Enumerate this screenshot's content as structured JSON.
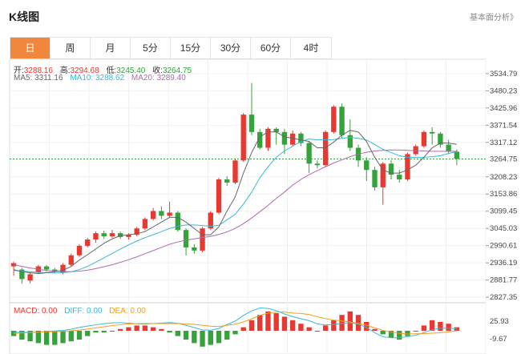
{
  "header": {
    "title": "K线图",
    "analysis_link": "基本面分析》"
  },
  "tabs": [
    {
      "label": "日",
      "active": true
    },
    {
      "label": "周",
      "active": false
    },
    {
      "label": "月",
      "active": false
    },
    {
      "label": "5分",
      "active": false
    },
    {
      "label": "15分",
      "active": false
    },
    {
      "label": "30分",
      "active": false
    },
    {
      "label": "60分",
      "active": false
    },
    {
      "label": "4时",
      "active": false
    }
  ],
  "ohlc": {
    "open_label": "开:",
    "open": "3288.16",
    "high_label": "高:",
    "high": "3294.68",
    "low_label": "低:",
    "low": "3245.40",
    "close_label": "收:",
    "close": "3264.75"
  },
  "ma": {
    "ma5": "MA5: 3311.16",
    "ma10": "MA10: 3288.62",
    "ma20": "MA20: 3289.40"
  },
  "macd": {
    "macd": "MACD: 0.00",
    "diff": "DIFF: 0.00",
    "dea": "DEA: 0.00"
  },
  "colors": {
    "up": "#e8382f",
    "down": "#33a33a",
    "ma5": "#666666",
    "ma10": "#3bb8d8",
    "ma20": "#b06ab0",
    "active_tab": "#f0873c"
  },
  "chart_data": {
    "type": "candlestick",
    "y_ticks": [
      "3534.79",
      "3480.23",
      "3425.96",
      "3371.54",
      "3317.12",
      "3208.23",
      "3153.86",
      "3099.45",
      "3045.03",
      "2990.61",
      "2936.19",
      "2881.77",
      "2827.35"
    ],
    "current_price": "3264.75",
    "macd_ticks": [
      "25.93",
      "-9.67"
    ],
    "ylim": [
      2810,
      3580
    ],
    "candles": [
      [
        2925,
        2935,
        2895,
        2940
      ],
      [
        2915,
        2885,
        2870,
        2920
      ],
      [
        2880,
        2900,
        2872,
        2905
      ],
      [
        2905,
        2925,
        2900,
        2930
      ],
      [
        2925,
        2915,
        2908,
        2930
      ],
      [
        2915,
        2910,
        2905,
        2920
      ],
      [
        2905,
        2930,
        2900,
        2935
      ],
      [
        2930,
        2960,
        2925,
        2965
      ],
      [
        2960,
        2990,
        2955,
        2995
      ],
      [
        2990,
        3010,
        2985,
        3015
      ],
      [
        3010,
        3030,
        3000,
        3035
      ],
      [
        3030,
        3020,
        3012,
        3038
      ],
      [
        3020,
        3030,
        3015,
        3040
      ],
      [
        3030,
        3018,
        3012,
        3035
      ],
      [
        3018,
        3025,
        3010,
        3030
      ],
      [
        3025,
        3045,
        3020,
        3050
      ],
      [
        3045,
        3075,
        3040,
        3080
      ],
      [
        3075,
        3100,
        3070,
        3110
      ],
      [
        3100,
        3085,
        3075,
        3115
      ],
      [
        3085,
        3095,
        3080,
        3130
      ],
      [
        3095,
        3040,
        3035,
        3100
      ],
      [
        3040,
        2985,
        2960,
        3045
      ],
      [
        2985,
        2975,
        2965,
        2995
      ],
      [
        2975,
        3045,
        2970,
        3050
      ],
      [
        3045,
        3095,
        3040,
        3100
      ],
      [
        3095,
        3200,
        3090,
        3205
      ],
      [
        3200,
        3190,
        3180,
        3210
      ],
      [
        3190,
        3260,
        3185,
        3265
      ],
      [
        3260,
        3405,
        3255,
        3410
      ],
      [
        3405,
        3350,
        3340,
        3505
      ],
      [
        3350,
        3300,
        3295,
        3360
      ],
      [
        3300,
        3360,
        3290,
        3365
      ],
      [
        3360,
        3350,
        3310,
        3365
      ],
      [
        3350,
        3310,
        3280,
        3360
      ],
      [
        3310,
        3345,
        3305,
        3355
      ],
      [
        3345,
        3315,
        3305,
        3350
      ],
      [
        3315,
        3250,
        3220,
        3320
      ],
      [
        3250,
        3245,
        3235,
        3260
      ],
      [
        3245,
        3350,
        3240,
        3355
      ],
      [
        3350,
        3430,
        3345,
        3435
      ],
      [
        3430,
        3340,
        3330,
        3440
      ],
      [
        3340,
        3300,
        3290,
        3390
      ],
      [
        3300,
        3260,
        3240,
        3310
      ],
      [
        3260,
        3230,
        3195,
        3270
      ],
      [
        3230,
        3175,
        3165,
        3240
      ],
      [
        3175,
        3250,
        3120,
        3255
      ],
      [
        3250,
        3215,
        3200,
        3260
      ],
      [
        3215,
        3200,
        3190,
        3230
      ],
      [
        3200,
        3280,
        3195,
        3285
      ],
      [
        3280,
        3305,
        3275,
        3310
      ],
      [
        3305,
        3350,
        3300,
        3355
      ],
      [
        3350,
        3345,
        3310,
        3365
      ],
      [
        3345,
        3310,
        3300,
        3350
      ],
      [
        3310,
        3288,
        3280,
        3325
      ],
      [
        3288,
        3265,
        3245,
        3295
      ]
    ],
    "ma5": [
      2915,
      2908,
      2905,
      2902,
      2905,
      2908,
      2912,
      2925,
      2945,
      2962,
      2980,
      2998,
      3012,
      3022,
      3025,
      3028,
      3035,
      3050,
      3065,
      3080,
      3080,
      3065,
      3045,
      3025,
      3025,
      3050,
      3100,
      3145,
      3220,
      3285,
      3335,
      3350,
      3350,
      3335,
      3330,
      3325,
      3320,
      3300,
      3300,
      3318,
      3340,
      3355,
      3350,
      3320,
      3270,
      3230,
      3220,
      3220,
      3230,
      3245,
      3270,
      3300,
      3315,
      3315,
      3311
    ],
    "ma10": [
      2912,
      2910,
      2908,
      2906,
      2905,
      2904,
      2905,
      2908,
      2915,
      2925,
      2938,
      2952,
      2966,
      2980,
      2993,
      3005,
      3016,
      3025,
      3035,
      3045,
      3052,
      3056,
      3056,
      3054,
      3052,
      3055,
      3072,
      3090,
      3122,
      3160,
      3205,
      3240,
      3270,
      3290,
      3305,
      3320,
      3328,
      3325,
      3325,
      3326,
      3330,
      3333,
      3330,
      3325,
      3310,
      3295,
      3285,
      3275,
      3270,
      3270,
      3270,
      3272,
      3275,
      3282,
      3288
    ],
    "ma20": [
      2930,
      2925,
      2920,
      2916,
      2912,
      2910,
      2909,
      2908,
      2910,
      2913,
      2918,
      2924,
      2930,
      2938,
      2946,
      2955,
      2965,
      2975,
      2985,
      2995,
      3002,
      3008,
      3012,
      3016,
      3020,
      3026,
      3034,
      3045,
      3060,
      3078,
      3098,
      3118,
      3140,
      3160,
      3182,
      3200,
      3215,
      3228,
      3240,
      3252,
      3262,
      3272,
      3280,
      3286,
      3290,
      3292,
      3293,
      3293,
      3292,
      3291,
      3290,
      3289,
      3289,
      3289,
      3289
    ],
    "macd_hist": [
      -3,
      -5,
      -6,
      -7,
      -8,
      -8,
      -7,
      -6,
      -5,
      -3,
      -1,
      -1,
      0,
      1,
      2,
      3,
      3,
      2,
      1,
      -1,
      -3,
      -5,
      -7,
      -9,
      -8,
      -7,
      -5,
      -2,
      2,
      6,
      9,
      11,
      10,
      8,
      6,
      4,
      2,
      0,
      3,
      6,
      9,
      11,
      9,
      5,
      1,
      -2,
      -4,
      -5,
      -3,
      0,
      3,
      6,
      5,
      4,
      2
    ]
  }
}
